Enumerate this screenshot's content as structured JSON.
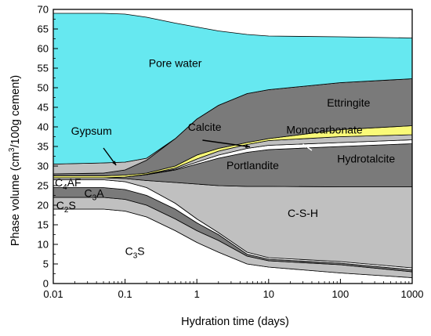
{
  "chart_data": {
    "type": "area",
    "title": "",
    "xlabel": "Hydration time (days)",
    "ylabel_parts": [
      "Phase volume (cm",
      "3",
      "/100g cement)"
    ],
    "x_scale": "log",
    "xlim": [
      0.01,
      1000
    ],
    "ylim": [
      0,
      70
    ],
    "x_ticks": [
      {
        "value": 0.01,
        "label": "0.01"
      },
      {
        "value": 0.1,
        "label": "0.1"
      },
      {
        "value": 1,
        "label": "1"
      },
      {
        "value": 10,
        "label": "10"
      },
      {
        "value": 100,
        "label": "100"
      },
      {
        "value": 1000,
        "label": "1000"
      }
    ],
    "y_ticks": [
      0,
      5,
      10,
      15,
      20,
      25,
      30,
      35,
      40,
      45,
      50,
      55,
      60,
      65,
      70
    ],
    "x": [
      0.01,
      0.05,
      0.1,
      0.2,
      0.5,
      1,
      2,
      5,
      10,
      100,
      1000
    ],
    "boundaries": {
      "c3s_top": [
        19.0,
        19.0,
        18.5,
        17.0,
        13.5,
        10.5,
        8.0,
        5.0,
        4.2,
        2.7,
        1.5
      ],
      "c2s_top": [
        22.0,
        22.0,
        21.5,
        20.0,
        16.5,
        13.5,
        11.0,
        7.0,
        5.8,
        4.8,
        3.0
      ],
      "c3a_top": [
        24.5,
        24.5,
        24.0,
        22.5,
        19.0,
        15.5,
        12.5,
        7.5,
        6.2,
        5.2,
        3.5
      ],
      "c4af_top": [
        26.5,
        26.5,
        26.0,
        24.5,
        20.5,
        16.5,
        13.0,
        8.0,
        6.6,
        5.6,
        4.0
      ],
      "csh_top": [
        27.0,
        27.0,
        26.8,
        26.3,
        25.8,
        25.4,
        25.0,
        24.8,
        24.8,
        24.7,
        24.7
      ],
      "portlandite_top": [
        27.0,
        27.0,
        27.2,
        27.8,
        29.0,
        30.5,
        32.0,
        33.5,
        34.2,
        35.0,
        35.7
      ],
      "hydrotalcite_top": [
        27.0,
        27.0,
        27.2,
        27.8,
        29.2,
        31.0,
        32.8,
        34.5,
        35.3,
        36.0,
        36.7
      ],
      "monocarbonate_top": [
        27.0,
        27.0,
        27.2,
        27.9,
        29.5,
        31.8,
        33.8,
        35.5,
        36.5,
        37.5,
        38.0
      ],
      "calcite_top": [
        27.5,
        27.5,
        27.7,
        28.2,
        30.0,
        32.8,
        34.5,
        36.0,
        37.0,
        39.3,
        40.3
      ],
      "ettringite_top": [
        28.0,
        28.2,
        29.0,
        31.5,
        37.0,
        42.0,
        45.5,
        48.5,
        49.5,
        51.3,
        52.3
      ],
      "gypsum_top": [
        30.5,
        30.8,
        31.0,
        32.0,
        37.0,
        42.0,
        45.5,
        48.5,
        49.5,
        51.3,
        52.3
      ],
      "pore_water_top": [
        69.0,
        69.0,
        68.8,
        68.0,
        66.5,
        65.5,
        64.5,
        63.6,
        63.2,
        63.0,
        62.7
      ]
    },
    "series": [
      {
        "key": "c3s",
        "lower": null,
        "upper": "c3s_top",
        "color": "#ffffff"
      },
      {
        "key": "c2s",
        "lower": "c3s_top",
        "upper": "c2s_top",
        "color": "#c0c0c0"
      },
      {
        "key": "c3a",
        "lower": "c2s_top",
        "upper": "c3a_top",
        "color": "#7a7a7a"
      },
      {
        "key": "c4af",
        "lower": "c3a_top",
        "upper": "c4af_top",
        "color": "#ffffff"
      },
      {
        "key": "csh",
        "lower": "c4af_top",
        "upper": "csh_top",
        "color": "#c0c0c0"
      },
      {
        "key": "portlandite",
        "lower": "csh_top",
        "upper": "portlandite_top",
        "color": "#7a7a7a"
      },
      {
        "key": "hydrotalcite",
        "lower": "portlandite_top",
        "upper": "hydrotalcite_top",
        "color": "#ffffff"
      },
      {
        "key": "monocarbonate",
        "lower": "hydrotalcite_top",
        "upper": "monocarbonate_top",
        "color": "#c0c0c0"
      },
      {
        "key": "calcite",
        "lower": "monocarbonate_top",
        "upper": "calcite_top",
        "color": "#fafa78"
      },
      {
        "key": "ettringite",
        "lower": "calcite_top",
        "upper": "ettringite_top",
        "color": "#7a7a7a"
      },
      {
        "key": "gypsum",
        "lower": "ettringite_top",
        "upper": "gypsum_top",
        "color": "#c0c0c0"
      },
      {
        "key": "pore_water",
        "lower": "gypsum_top",
        "upper": "pore_water_top",
        "color": "#66e8f0"
      }
    ],
    "labels": {
      "pore_water": "Pore water",
      "ettringite": "Ettringite",
      "gypsum": "Gypsum",
      "calcite": "Calcite",
      "monocarbonate": "Monocarbonate",
      "portlandite": "Portlandite",
      "hydrotalcite": "Hydrotalcite",
      "csh": "C-S-H",
      "c4af": [
        "C",
        "4",
        "AF"
      ],
      "c3a": [
        "C",
        "3",
        "A"
      ],
      "c2s": [
        "C",
        "2",
        "S"
      ],
      "c3s": [
        "C",
        "3",
        "S"
      ]
    }
  }
}
